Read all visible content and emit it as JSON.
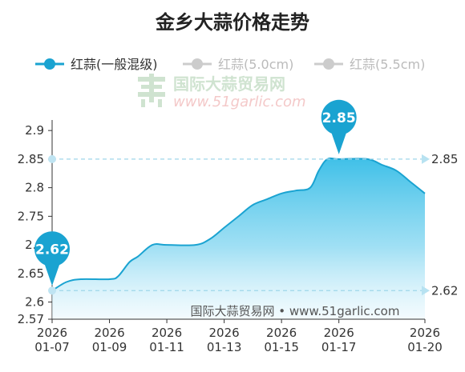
{
  "chart_data": {
    "type": "area",
    "title": "金乡大蒜价格走势",
    "legend": [
      {
        "name": "红蒜(一般混级)",
        "color": "#1aa3d1",
        "active": true
      },
      {
        "name": "红蒜(5.0cm)",
        "color": "#cccccc",
        "active": false
      },
      {
        "name": "红蒜(5.5cm)",
        "color": "#cccccc",
        "active": false
      }
    ],
    "x_ticks": [
      {
        "year": "2026",
        "date": "01-07",
        "day": 7
      },
      {
        "year": "2026",
        "date": "01-09",
        "day": 9
      },
      {
        "year": "2026",
        "date": "01-11",
        "day": 11
      },
      {
        "year": "2026",
        "date": "01-13",
        "day": 13
      },
      {
        "year": "2026",
        "date": "01-15",
        "day": 15
      },
      {
        "year": "2026",
        "date": "01-17",
        "day": 17
      },
      {
        "year": "2026",
        "date": "01-20",
        "day": 20
      }
    ],
    "y_ticks": [
      "2.57",
      "2.6",
      "2.65",
      "2.7",
      "2.75",
      "2.8",
      "2.85",
      "2.9"
    ],
    "ylim": [
      2.57,
      2.91
    ],
    "xlim": [
      7,
      20
    ],
    "series": [
      {
        "name": "红蒜(一般混级)",
        "color": "#1aa3d1",
        "points": [
          {
            "day": 7,
            "value": 2.62
          },
          {
            "day": 7.5,
            "value": 2.635
          },
          {
            "day": 8,
            "value": 2.64
          },
          {
            "day": 9,
            "value": 2.64
          },
          {
            "day": 9.3,
            "value": 2.645
          },
          {
            "day": 9.7,
            "value": 2.67
          },
          {
            "day": 10,
            "value": 2.68
          },
          {
            "day": 10.5,
            "value": 2.7
          },
          {
            "day": 11,
            "value": 2.7
          },
          {
            "day": 12,
            "value": 2.7
          },
          {
            "day": 12.5,
            "value": 2.71
          },
          {
            "day": 13,
            "value": 2.73
          },
          {
            "day": 13.5,
            "value": 2.75
          },
          {
            "day": 14,
            "value": 2.77
          },
          {
            "day": 14.5,
            "value": 2.78
          },
          {
            "day": 15,
            "value": 2.79
          },
          {
            "day": 15.5,
            "value": 2.795
          },
          {
            "day": 16,
            "value": 2.8
          },
          {
            "day": 16.3,
            "value": 2.83
          },
          {
            "day": 16.6,
            "value": 2.85
          },
          {
            "day": 17,
            "value": 2.85
          },
          {
            "day": 18,
            "value": 2.85
          },
          {
            "day": 18.5,
            "value": 2.84
          },
          {
            "day": 19,
            "value": 2.83
          },
          {
            "day": 19.5,
            "value": 2.81
          },
          {
            "day": 20,
            "value": 2.79
          }
        ]
      }
    ],
    "annotations": [
      {
        "label": "2.62",
        "day": 7,
        "value": 2.62,
        "ref_label": "2.62"
      },
      {
        "label": "2.85",
        "day": 17,
        "value": 2.85,
        "ref_label": "2.85"
      }
    ],
    "watermark": {
      "cn": "国际大蒜贸易网",
      "url": "www.51garlic.com"
    },
    "credit": "国际大蒜贸易网 • www.51garlic.com"
  }
}
